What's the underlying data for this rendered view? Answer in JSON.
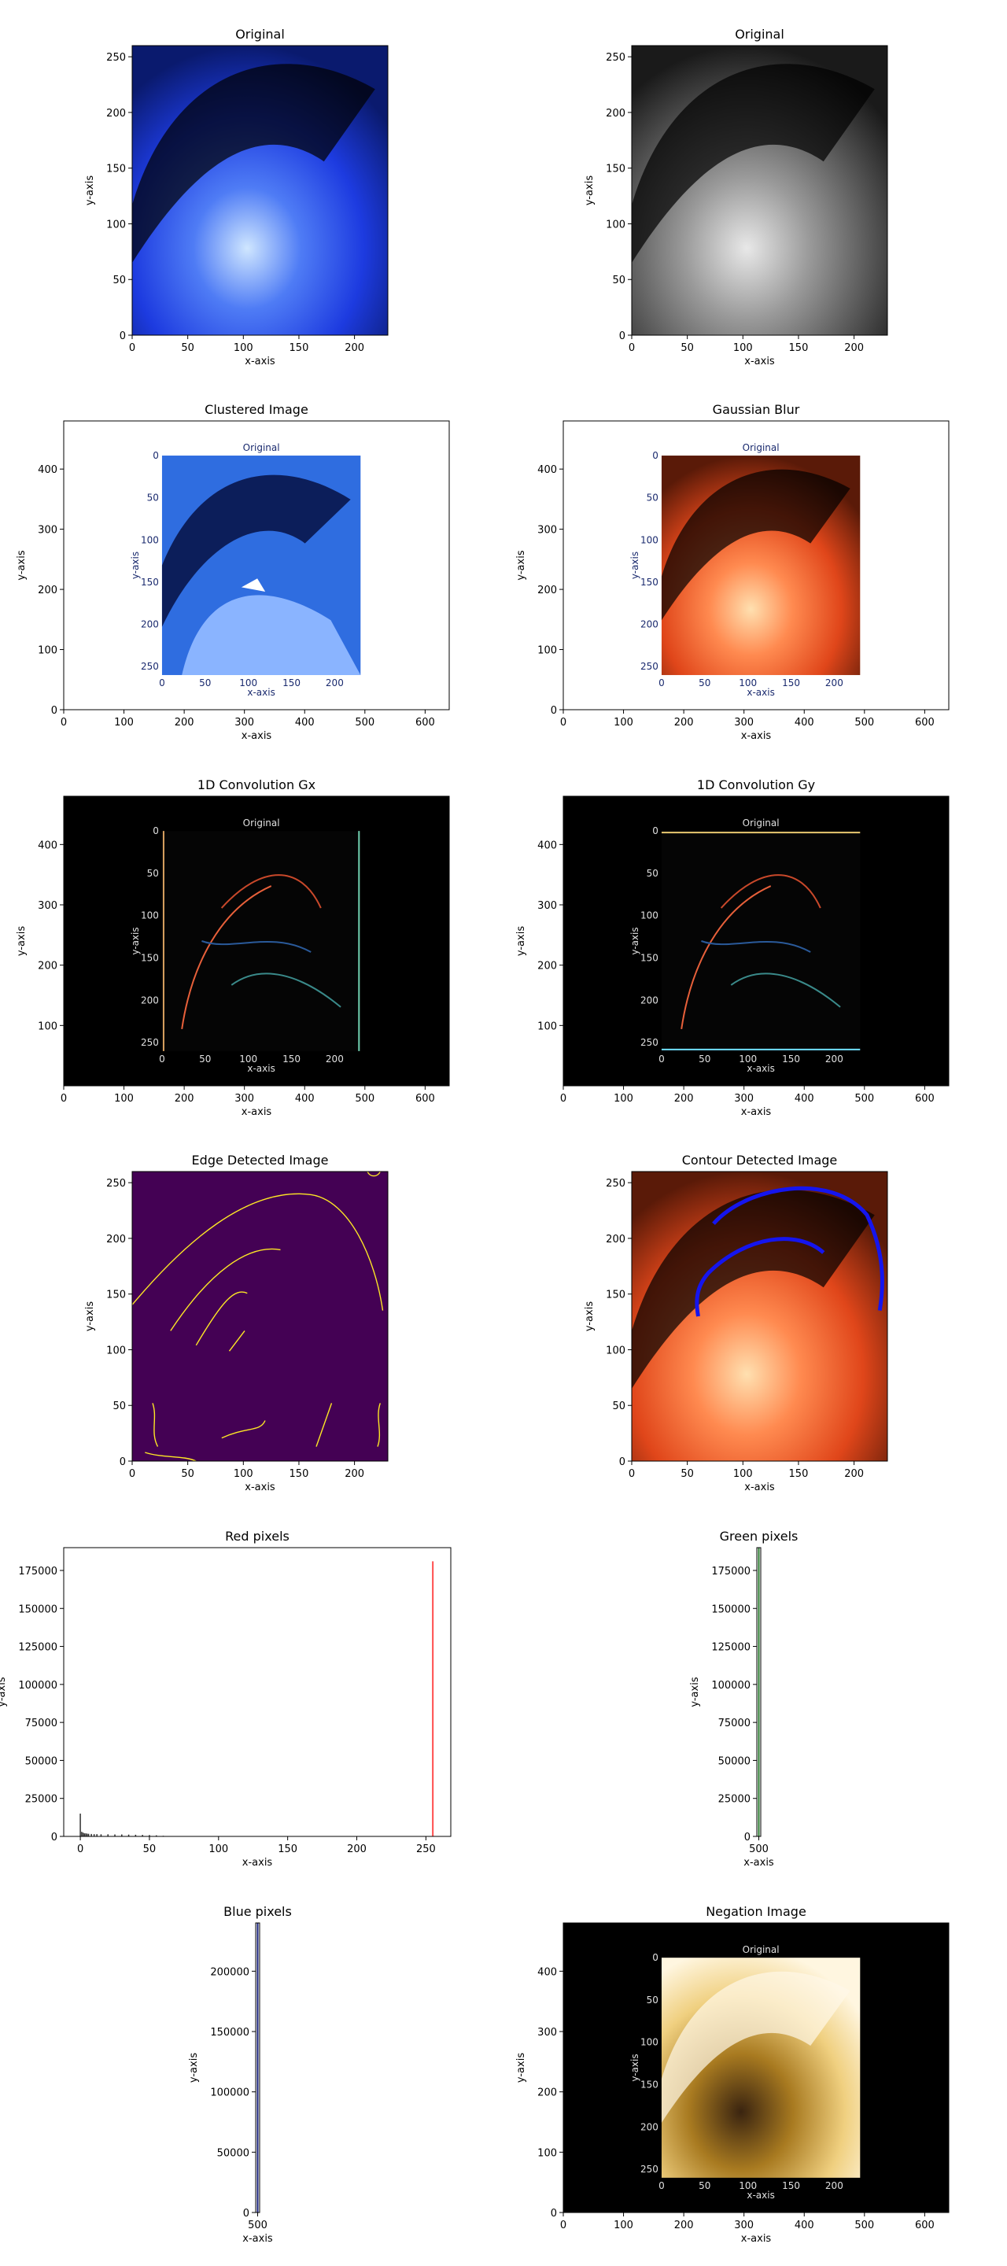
{
  "figure": {
    "axis_xlabel": "x-axis",
    "axis_ylabel": "y-axis"
  },
  "panels": [
    {
      "id": "p1",
      "title": "Original",
      "kind": "image",
      "colormap": "blue",
      "xlim": [
        0,
        230
      ],
      "ylim": [
        260,
        0
      ],
      "xticks": [
        "0",
        "50",
        "100",
        "150",
        "200"
      ],
      "xtick_vals": [
        0,
        50,
        100,
        150,
        200
      ],
      "yticks": [
        "0",
        "50",
        "100",
        "150",
        "200",
        "250"
      ],
      "ytick_vals": [
        0,
        50,
        100,
        150,
        200,
        250
      ]
    },
    {
      "id": "p2",
      "title": "Original",
      "kind": "image",
      "colormap": "gray",
      "xlim": [
        0,
        230
      ],
      "ylim": [
        260,
        0
      ],
      "xticks": [
        "0",
        "50",
        "100",
        "150",
        "200"
      ],
      "xtick_vals": [
        0,
        50,
        100,
        150,
        200
      ],
      "yticks": [
        "0",
        "50",
        "100",
        "150",
        "200",
        "250"
      ],
      "ytick_vals": [
        0,
        50,
        100,
        150,
        200,
        250
      ]
    },
    {
      "id": "p3",
      "title": "Clustered Image",
      "kind": "nested",
      "colormap": "clustered",
      "xlim": [
        0,
        640
      ],
      "ylim": [
        480,
        0
      ],
      "xticks": [
        "0",
        "100",
        "200",
        "300",
        "400",
        "500",
        "600"
      ],
      "xtick_vals": [
        0,
        100,
        200,
        300,
        400,
        500,
        600
      ],
      "yticks": [
        "0",
        "100",
        "200",
        "300",
        "400"
      ],
      "ytick_vals": [
        0,
        100,
        200,
        300,
        400
      ],
      "inner_title": "Original",
      "inner_xticks": [
        "0",
        "50",
        "100",
        "150",
        "200"
      ],
      "inner_yticks": [
        "0",
        "50",
        "100",
        "150",
        "200",
        "250"
      ],
      "inner_xlabel": "x-axis",
      "inner_ylabel": "y-axis"
    },
    {
      "id": "p4",
      "title": "Gaussian Blur",
      "kind": "nested",
      "colormap": "orange",
      "xlim": [
        0,
        640
      ],
      "ylim": [
        480,
        0
      ],
      "xticks": [
        "0",
        "100",
        "200",
        "300",
        "400",
        "500",
        "600"
      ],
      "xtick_vals": [
        0,
        100,
        200,
        300,
        400,
        500,
        600
      ],
      "yticks": [
        "0",
        "100",
        "200",
        "300",
        "400"
      ],
      "ytick_vals": [
        0,
        100,
        200,
        300,
        400
      ],
      "inner_title": "Original",
      "inner_xticks": [
        "0",
        "50",
        "100",
        "150",
        "200"
      ],
      "inner_yticks": [
        "0",
        "50",
        "100",
        "150",
        "200",
        "250"
      ],
      "inner_xlabel": "x-axis",
      "inner_ylabel": "y-axis"
    },
    {
      "id": "p5",
      "title": "1D Convolution Gx",
      "kind": "nested",
      "colormap": "edges-dark",
      "xlim": [
        0,
        640
      ],
      "ylim": [
        480,
        0
      ],
      "xticks": [
        "0",
        "100",
        "200",
        "300",
        "400",
        "500",
        "600"
      ],
      "xtick_vals": [
        0,
        100,
        200,
        300,
        400,
        500,
        600
      ],
      "yticks": [
        "100",
        "200",
        "300",
        "400"
      ],
      "ytick_vals": [
        100,
        200,
        300,
        400
      ],
      "inner_title": "Original",
      "inner_xticks": [
        "0",
        "50",
        "100",
        "150",
        "200"
      ],
      "inner_yticks": [
        "0",
        "50",
        "100",
        "150",
        "200",
        "250"
      ],
      "inner_xlabel": "x-axis",
      "inner_ylabel": "y-axis"
    },
    {
      "id": "p6",
      "title": "1D Convolution Gy",
      "kind": "nested",
      "colormap": "edges-dark",
      "xlim": [
        0,
        640
      ],
      "ylim": [
        480,
        0
      ],
      "xticks": [
        "0",
        "100",
        "200",
        "300",
        "400",
        "500",
        "600"
      ],
      "xtick_vals": [
        0,
        100,
        200,
        300,
        400,
        500,
        600
      ],
      "yticks": [
        "100",
        "200",
        "300",
        "400"
      ],
      "ytick_vals": [
        100,
        200,
        300,
        400
      ],
      "inner_title": "Original",
      "inner_xticks": [
        "0",
        "50",
        "100",
        "150",
        "200"
      ],
      "inner_yticks": [
        "0",
        "50",
        "100",
        "150",
        "200",
        "250"
      ],
      "inner_xlabel": "x-axis",
      "inner_ylabel": "y-axis"
    },
    {
      "id": "p7",
      "title": "Edge Detected Image",
      "kind": "image",
      "colormap": "viridis-edges",
      "xlim": [
        0,
        230
      ],
      "ylim": [
        260,
        0
      ],
      "xticks": [
        "0",
        "50",
        "100",
        "150",
        "200"
      ],
      "xtick_vals": [
        0,
        50,
        100,
        150,
        200
      ],
      "yticks": [
        "0",
        "50",
        "100",
        "150",
        "200",
        "250"
      ],
      "ytick_vals": [
        0,
        50,
        100,
        150,
        200,
        250
      ]
    },
    {
      "id": "p8",
      "title": "Contour Detected Image",
      "kind": "image",
      "colormap": "orange-contour",
      "xlim": [
        0,
        230
      ],
      "ylim": [
        260,
        0
      ],
      "xticks": [
        "0",
        "50",
        "100",
        "150",
        "200"
      ],
      "xtick_vals": [
        0,
        50,
        100,
        150,
        200
      ],
      "yticks": [
        "0",
        "50",
        "100",
        "150",
        "200",
        "250"
      ],
      "ytick_vals": [
        0,
        50,
        100,
        150,
        200,
        250
      ]
    },
    {
      "id": "p9",
      "title": "Red pixels",
      "kind": "hist",
      "xlim": [
        -12,
        268
      ],
      "ylim": [
        0,
        190000
      ],
      "xticks": [
        "0",
        "50",
        "100",
        "150",
        "200",
        "250"
      ],
      "xtick_vals": [
        0,
        50,
        100,
        150,
        200,
        250
      ],
      "yticks": [
        "0",
        "25000",
        "50000",
        "75000",
        "100000",
        "125000",
        "150000",
        "175000"
      ],
      "ytick_vals": [
        0,
        25000,
        50000,
        75000,
        100000,
        125000,
        150000,
        175000
      ]
    },
    {
      "id": "p10",
      "title": "Green pixels",
      "kind": "line-narrow",
      "color": "#2e7d32",
      "ylim": [
        190000,
        0
      ],
      "xticks": [
        "500"
      ],
      "yticks": [
        "0",
        "25000",
        "50000",
        "75000",
        "100000",
        "125000",
        "150000",
        "175000"
      ],
      "ytick_vals": [
        0,
        25000,
        50000,
        75000,
        100000,
        125000,
        150000,
        175000
      ]
    },
    {
      "id": "p11",
      "title": "Blue pixels",
      "kind": "line-narrow",
      "color": "#1a237e",
      "ylim": [
        240000,
        0
      ],
      "xticks": [
        "500"
      ],
      "yticks": [
        "0",
        "50000",
        "100000",
        "150000",
        "200000"
      ],
      "ytick_vals": [
        0,
        50000,
        100000,
        150000,
        200000
      ]
    },
    {
      "id": "p12",
      "title": "Negation Image",
      "kind": "nested",
      "colormap": "negation",
      "xlim": [
        0,
        640
      ],
      "ylim": [
        480,
        0
      ],
      "xticks": [
        "0",
        "100",
        "200",
        "300",
        "400",
        "500",
        "600"
      ],
      "xtick_vals": [
        0,
        100,
        200,
        300,
        400,
        500,
        600
      ],
      "yticks": [
        "0",
        "100",
        "200",
        "300",
        "400"
      ],
      "ytick_vals": [
        0,
        100,
        200,
        300,
        400
      ],
      "inner_title": "Original",
      "inner_xticks": [
        "0",
        "50",
        "100",
        "150",
        "200"
      ],
      "inner_yticks": [
        "0",
        "50",
        "100",
        "150",
        "200",
        "250"
      ],
      "inner_xlabel": "x-axis",
      "inner_ylabel": "y-axis"
    }
  ],
  "chart_data": [
    {
      "type": "heatmap",
      "title": "Original",
      "xlabel": "x-axis",
      "ylabel": "y-axis",
      "xlim": [
        0,
        230
      ],
      "ylim": [
        260,
        0
      ]
    },
    {
      "type": "heatmap",
      "title": "Original",
      "xlabel": "x-axis",
      "ylabel": "y-axis",
      "xlim": [
        0,
        230
      ],
      "ylim": [
        260,
        0
      ]
    },
    {
      "type": "heatmap",
      "title": "Clustered Image",
      "xlabel": "x-axis",
      "ylabel": "y-axis",
      "xlim": [
        0,
        640
      ],
      "ylim": [
        480,
        0
      ]
    },
    {
      "type": "heatmap",
      "title": "Gaussian Blur",
      "xlabel": "x-axis",
      "ylabel": "y-axis",
      "xlim": [
        0,
        640
      ],
      "ylim": [
        480,
        0
      ]
    },
    {
      "type": "heatmap",
      "title": "1D Convolution Gx",
      "xlabel": "x-axis",
      "ylabel": "y-axis",
      "xlim": [
        0,
        640
      ],
      "ylim": [
        480,
        0
      ]
    },
    {
      "type": "heatmap",
      "title": "1D Convolution Gy",
      "xlabel": "x-axis",
      "ylabel": "y-axis",
      "xlim": [
        0,
        640
      ],
      "ylim": [
        480,
        0
      ]
    },
    {
      "type": "heatmap",
      "title": "Edge Detected Image",
      "xlabel": "x-axis",
      "ylabel": "y-axis",
      "xlim": [
        0,
        230
      ],
      "ylim": [
        260,
        0
      ]
    },
    {
      "type": "heatmap",
      "title": "Contour Detected Image",
      "xlabel": "x-axis",
      "ylabel": "y-axis",
      "xlim": [
        0,
        230
      ],
      "ylim": [
        260,
        0
      ]
    },
    {
      "type": "bar",
      "title": "Red pixels",
      "xlabel": "x-axis",
      "ylabel": "y-axis",
      "xlim": [
        -12,
        268
      ],
      "ylim": [
        0,
        190000
      ],
      "series": [
        {
          "color": "#333333",
          "x": [
            0,
            1,
            2,
            3,
            4,
            5,
            6,
            8,
            10,
            12,
            15,
            20,
            25,
            30,
            35,
            40,
            45,
            50,
            55,
            60
          ],
          "values": [
            15000,
            3000,
            2500,
            2000,
            2000,
            1800,
            1700,
            1600,
            1500,
            1500,
            1400,
            1400,
            1300,
            1300,
            1200,
            1100,
            1000,
            900,
            700,
            400
          ]
        },
        {
          "color": "#ff4d4d",
          "x": [
            255
          ],
          "values": [
            181000
          ]
        }
      ]
    },
    {
      "type": "line",
      "title": "Green pixels",
      "xlabel": "x-axis",
      "ylabel": "y-axis",
      "ylim": [
        190000,
        0
      ],
      "xticks": [
        "500"
      ]
    },
    {
      "type": "line",
      "title": "Blue pixels",
      "xlabel": "x-axis",
      "ylabel": "y-axis",
      "ylim": [
        240000,
        0
      ],
      "xticks": [
        "500"
      ]
    },
    {
      "type": "heatmap",
      "title": "Negation Image",
      "xlabel": "x-axis",
      "ylabel": "y-axis",
      "xlim": [
        0,
        640
      ],
      "ylim": [
        480,
        0
      ]
    }
  ]
}
